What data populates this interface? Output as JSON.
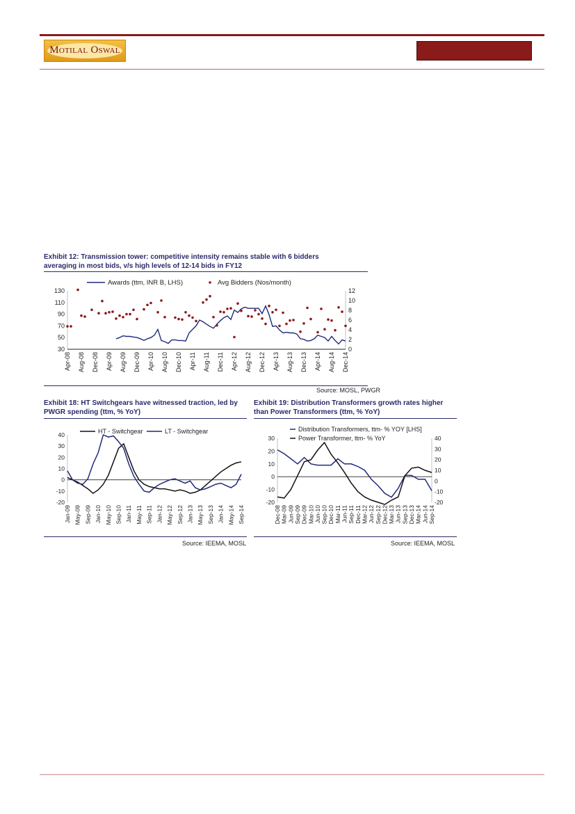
{
  "header": {
    "logo_text": "Motilal Oswal"
  },
  "exhibit12": {
    "title_line1": "Exhibit 12: Transmission tower: competitive intensity remains stable with 6 bidders",
    "title_line2": "averaging in most bids, v/s high levels of 12-14 bids in FY12",
    "source": "Source: MOSL, PWGR"
  },
  "exhibit18": {
    "title_line1": "Exhibit 18: HT Switchgears have witnessed traction, led by",
    "title_line2": "PWGR spending (ttm, % YoY)",
    "source": "Source: IEEMA, MOSL"
  },
  "exhibit19": {
    "title_line1": "Exhibit 19: Distribution Transformers growth rates higher",
    "title_line2": "than Power Transformers (ttm, % YoY)",
    "source": "Source: IEEMA, MOSL"
  },
  "chart_data": [
    {
      "id": "ex12",
      "type": "line",
      "categories": [
        "Apr-08",
        "Aug-08",
        "Dec-08",
        "Apr-09",
        "Aug-09",
        "Dec-09",
        "Apr-10",
        "Aug-10",
        "Dec-10",
        "Apr-11",
        "Aug-11",
        "Dec-11",
        "Apr-12",
        "Aug-12",
        "Dec-12",
        "Apr-13",
        "Aug-13",
        "Dec-13",
        "Apr-14",
        "Aug-14",
        "Dec-14"
      ],
      "y_left": {
        "min": 30,
        "max": 130,
        "ticks": [
          30,
          50,
          70,
          90,
          110,
          130
        ]
      },
      "y_right": {
        "min": 0,
        "max": 12,
        "ticks": [
          0,
          2,
          4,
          6,
          8,
          10,
          12
        ]
      },
      "x_range": [
        0,
        80
      ],
      "series": [
        {
          "name": "Awards (ttm, INR B, LHS)",
          "axis": "left",
          "kind": "line",
          "color": "#1f2a7a",
          "x": [
            14,
            15,
            16,
            17,
            18,
            19,
            20,
            21,
            22,
            23,
            24,
            25,
            26,
            27,
            28,
            29,
            30,
            31,
            32,
            33,
            34,
            35,
            36,
            37,
            38,
            39,
            40,
            41,
            42,
            43,
            44,
            45,
            46,
            47,
            48,
            49,
            50,
            51,
            52,
            53,
            54,
            55,
            56,
            57,
            58,
            59,
            60,
            61,
            62,
            63,
            64,
            65,
            66,
            67,
            68,
            69,
            70,
            71,
            72,
            73,
            74,
            75,
            76,
            77,
            78,
            79,
            80
          ],
          "y": [
            48,
            50,
            53,
            52,
            52,
            51,
            50,
            48,
            45,
            48,
            50,
            54,
            64,
            45,
            43,
            40,
            46,
            46,
            45,
            45,
            44,
            58,
            64,
            70,
            80,
            77,
            73,
            69,
            66,
            73,
            79,
            84,
            87,
            81,
            97,
            93,
            99,
            102,
            100,
            100,
            100,
            100,
            91,
            104,
            89,
            69,
            70,
            63,
            58,
            59,
            58,
            58,
            56,
            48,
            47,
            44,
            45,
            48,
            54,
            52,
            50,
            44,
            52,
            45,
            39,
            46,
            44
          ]
        },
        {
          "name": "Avg Bidders (Nos/month)",
          "axis": "right",
          "kind": "scatter",
          "color": "#8b1a1a",
          "x": [
            0,
            1,
            3,
            4,
            5,
            7,
            9,
            10,
            11,
            12,
            13,
            14,
            15,
            16,
            17,
            18,
            19,
            20,
            22,
            23,
            24,
            26,
            27,
            28,
            31,
            32,
            33,
            34,
            35,
            36,
            37,
            39,
            40,
            41,
            42,
            43,
            44,
            45,
            46,
            47,
            48,
            49,
            50,
            52,
            53,
            54,
            55,
            56,
            57,
            58,
            59,
            60,
            61,
            62,
            63,
            64,
            65,
            67,
            68,
            69,
            70,
            72,
            73,
            74,
            75,
            76,
            77,
            78,
            79,
            80
          ],
          "y": [
            4.7,
            4.7,
            12.2,
            6.9,
            6.7,
            8.1,
            7.4,
            9.9,
            7.4,
            7.6,
            7.7,
            6.3,
            6.9,
            6.6,
            7.2,
            7.2,
            8.1,
            6.2,
            8.2,
            9.1,
            9.5,
            7.6,
            10.0,
            6.6,
            6.5,
            6.2,
            6.1,
            7.6,
            6.9,
            6.5,
            5.8,
            9.6,
            10.2,
            10.9,
            6.6,
            4.9,
            7.7,
            7.6,
            8.3,
            8.4,
            2.5,
            9.4,
            7.9,
            6.8,
            6.7,
            8.0,
            7.2,
            6.3,
            5.2,
            8.9,
            7.6,
            8.1,
            4.8,
            7.5,
            5.2,
            5.9,
            6.0,
            3.6,
            5.3,
            8.5,
            6.2,
            3.5,
            8.3,
            4.1,
            6.1,
            5.9,
            3.9,
            8.6,
            7.7,
            4.8
          ]
        }
      ]
    },
    {
      "id": "ex18",
      "type": "line",
      "categories": [
        "Jan-09",
        "May-09",
        "Sep-09",
        "Jan-10",
        "May-10",
        "Sep-10",
        "Jan-11",
        "May-11",
        "Sep-11",
        "Jan-12",
        "May-12",
        "Sep-12",
        "Jan-13",
        "May-13",
        "Sep-13",
        "Jan-14",
        "May-14",
        "Sep-14"
      ],
      "y_left": {
        "min": -20,
        "max": 40,
        "ticks": [
          -20,
          -10,
          0,
          10,
          20,
          30,
          40
        ]
      },
      "x_range": [
        0,
        68
      ],
      "series": [
        {
          "name": "HT - Switchgear",
          "kind": "line",
          "color": "#111111",
          "x": [
            0,
            2,
            4,
            6,
            8,
            10,
            12,
            14,
            16,
            18,
            20,
            22,
            24,
            26,
            28,
            30,
            32,
            34,
            36,
            38,
            40,
            42,
            44,
            46,
            48,
            50,
            52,
            54,
            56,
            58,
            60,
            62,
            64,
            66,
            68
          ],
          "y": [
            2,
            0,
            -2,
            -5,
            -8,
            -12,
            -9,
            -4,
            4,
            16,
            28,
            32,
            20,
            8,
            0,
            -4,
            -6,
            -7,
            -8,
            -8,
            -9,
            -10,
            -9,
            -10,
            -12,
            -11,
            -9,
            -5,
            -1,
            3,
            7,
            10,
            13,
            15,
            16
          ]
        },
        {
          "name": "LT - Switchgear",
          "kind": "line",
          "color": "#1f2a7a",
          "x": [
            0,
            2,
            4,
            6,
            8,
            10,
            12,
            14,
            16,
            18,
            20,
            22,
            24,
            26,
            28,
            30,
            32,
            34,
            36,
            38,
            40,
            42,
            44,
            46,
            48,
            50,
            52,
            54,
            56,
            58,
            60,
            62,
            64,
            66,
            68
          ],
          "y": [
            8,
            0,
            -3,
            -4,
            1,
            14,
            24,
            40,
            38,
            39,
            34,
            28,
            14,
            3,
            -4,
            -10,
            -11,
            -7,
            -4,
            -2,
            0,
            1,
            -1,
            -3,
            -1,
            -7,
            -9,
            -8,
            -6,
            -4,
            -3,
            -5,
            -7,
            -4,
            5
          ]
        }
      ]
    },
    {
      "id": "ex19",
      "type": "line",
      "categories": [
        "Dec-08",
        "Mar-09",
        "Jun-09",
        "Sep-09",
        "Dec-09",
        "Mar-10",
        "Jun-10",
        "Sep-10",
        "Dec-10",
        "Mar-11",
        "Jun-11",
        "Sep-11",
        "Dec-11",
        "Mar-12",
        "Jun-12",
        "Sep-12",
        "Dec-12",
        "Mar-13",
        "Jun-13",
        "Sep-13",
        "Dec-13",
        "Mar-14",
        "Jun-14",
        "Sep-14"
      ],
      "y_left": {
        "min": -20,
        "max": 30,
        "ticks": [
          -20,
          -10,
          0,
          10,
          20,
          30
        ]
      },
      "y_right": {
        "min": -20,
        "max": 40,
        "ticks": [
          -20,
          -10,
          0,
          10,
          20,
          30,
          40
        ]
      },
      "x_range": [
        0,
        69
      ],
      "series": [
        {
          "name": "Distribution Transformers, ttm- % YOY [LHS]",
          "axis": "left",
          "kind": "line",
          "color": "#1f2a7a",
          "x": [
            0,
            3,
            6,
            9,
            12,
            15,
            18,
            21,
            24,
            27,
            30,
            33,
            36,
            39,
            42,
            45,
            48,
            51,
            54,
            57,
            60,
            63,
            66,
            69
          ],
          "y": [
            21,
            18,
            14,
            10,
            15,
            10,
            9,
            9,
            9,
            14,
            10,
            10,
            8,
            5,
            -2,
            -7,
            -13,
            -16,
            -9,
            1,
            1,
            -2,
            -2,
            -11
          ]
        },
        {
          "name": "Power Transformer, ttm- % YoY",
          "axis": "right",
          "kind": "line",
          "color": "#111111",
          "x": [
            0,
            3,
            6,
            9,
            12,
            15,
            18,
            21,
            24,
            27,
            30,
            33,
            36,
            39,
            42,
            45,
            48,
            51,
            54,
            57,
            60,
            63,
            66,
            69
          ],
          "y": [
            -15,
            -16,
            -8,
            5,
            18,
            20,
            29,
            36,
            25,
            17,
            8,
            -2,
            -10,
            -15,
            -18,
            -20,
            -22,
            -18,
            -15,
            5,
            12,
            13,
            10,
            8
          ]
        }
      ]
    }
  ]
}
